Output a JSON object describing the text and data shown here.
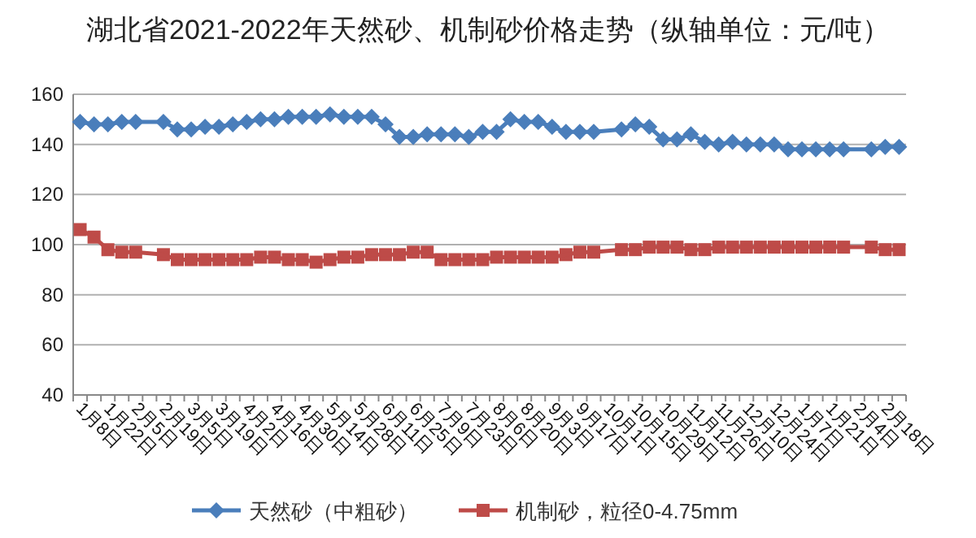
{
  "chart_data": {
    "type": "line",
    "title": "湖北省2021-2022年天然砂、机制砂价格走势（纵轴单位：元/吨）",
    "categories": [
      "1月8日",
      null,
      "1月22日",
      null,
      "2月5日",
      null,
      "2月19日",
      null,
      "3月5日",
      null,
      "3月19日",
      null,
      "4月2日",
      null,
      "4月16日",
      null,
      "4月30日",
      null,
      "5月14日",
      null,
      "5月28日",
      null,
      "6月11日",
      null,
      "6月25日",
      null,
      "7月9日",
      null,
      "7月23日",
      null,
      "8月6日",
      null,
      "8月20日",
      null,
      "9月3日",
      null,
      "9月17日",
      null,
      "10月1日",
      null,
      "10月15日",
      null,
      "10月29日",
      null,
      "11月12日",
      null,
      "11月26日",
      null,
      "12月10日",
      null,
      "12月24日",
      null,
      "1月7日",
      null,
      "1月21日",
      null,
      "2月4日",
      null,
      "2月18日",
      null
    ],
    "series": [
      {
        "name": "天然砂（中粗砂）",
        "color": "#4a7ebb",
        "marker": "diamond",
        "values": [
          149,
          148,
          148,
          149,
          149,
          null,
          149,
          146,
          146,
          147,
          147,
          148,
          149,
          150,
          150,
          151,
          151,
          151,
          152,
          151,
          151,
          151,
          148,
          143,
          143,
          144,
          144,
          144,
          143,
          145,
          145,
          150,
          149,
          149,
          147,
          145,
          145,
          145,
          null,
          146,
          148,
          147,
          142,
          142,
          144,
          141,
          140,
          141,
          140,
          140,
          140,
          138,
          138,
          138,
          138,
          138,
          null,
          138,
          139,
          139
        ]
      },
      {
        "name": "机制砂，粒径0-4.75mm",
        "color": "#be4b48",
        "marker": "square",
        "values": [
          106,
          103,
          98,
          97,
          97,
          null,
          96,
          94,
          94,
          94,
          94,
          94,
          94,
          95,
          95,
          94,
          94,
          93,
          94,
          95,
          95,
          96,
          96,
          96,
          97,
          97,
          94,
          94,
          94,
          94,
          95,
          95,
          95,
          95,
          95,
          96,
          97,
          97,
          null,
          98,
          98,
          99,
          99,
          99,
          98,
          98,
          99,
          99,
          99,
          99,
          99,
          99,
          99,
          99,
          99,
          99,
          null,
          99,
          98,
          98
        ]
      }
    ],
    "ylim": [
      40,
      160
    ],
    "yticks": [
      40,
      60,
      80,
      100,
      120,
      140,
      160
    ],
    "grid": "y",
    "legend": "bottom"
  }
}
